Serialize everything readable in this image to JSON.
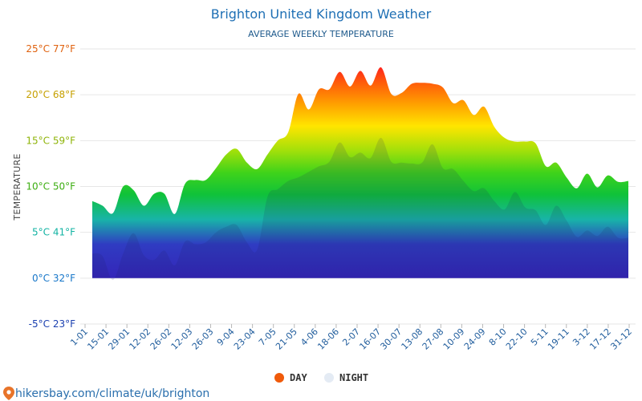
{
  "chart_data": {
    "type": "area",
    "title": "Brighton United Kingdom Weather",
    "subtitle": "AVERAGE WEEKLY TEMPERATURE",
    "ylabel": "TEMPERATURE",
    "ylim": [
      -5,
      25
    ],
    "y_ticks": [
      {
        "value": 25,
        "label": "25°C 77°F",
        "color": "#e0620f"
      },
      {
        "value": 20,
        "label": "20°C 68°F",
        "color": "#c6a000"
      },
      {
        "value": 15,
        "label": "15°C 59°F",
        "color": "#8fb40a"
      },
      {
        "value": 10,
        "label": "10°C 50°F",
        "color": "#3dae12"
      },
      {
        "value": 5,
        "label": "5°C 41°F",
        "color": "#12b3a3"
      },
      {
        "value": 0,
        "label": "0°C 32°F",
        "color": "#1877c9"
      },
      {
        "value": -5,
        "label": "-5°C 23°F",
        "color": "#1a3fb0"
      }
    ],
    "x_labels": [
      "1-01",
      "15-01",
      "29-01",
      "12-02",
      "26-02",
      "12-03",
      "26-03",
      "9-04",
      "23-04",
      "7-05",
      "21-05",
      "4-06",
      "18-06",
      "2-07",
      "16-07",
      "30-07",
      "13-08",
      "27-08",
      "10-09",
      "24-09",
      "8-10",
      "22-10",
      "5-11",
      "19-11",
      "3-12",
      "17-12",
      "31-12"
    ],
    "series": [
      {
        "name": "DAY",
        "color": "#f05a0a",
        "values": [
          8.4,
          7.9,
          7.1,
          10.0,
          9.6,
          7.9,
          9.2,
          9.2,
          7.0,
          10.3,
          10.7,
          10.7,
          12.0,
          13.5,
          14.1,
          12.6,
          11.9,
          13.5,
          15.0,
          15.9,
          20.1,
          18.4,
          20.6,
          20.6,
          22.5,
          20.9,
          22.6,
          21.0,
          23.0,
          20.1,
          20.2,
          21.2,
          21.3,
          21.2,
          20.8,
          19.1,
          19.4,
          17.8,
          18.7,
          16.5,
          15.3,
          14.9,
          14.9,
          14.7,
          12.2,
          12.6,
          11.0,
          9.8,
          11.4,
          9.9,
          11.2,
          10.5,
          10.6
        ]
      },
      {
        "name": "NIGHT",
        "color": "#e4ebf4",
        "values": [
          2.7,
          2.4,
          -0.2,
          2.7,
          4.9,
          2.5,
          2.0,
          3.0,
          1.4,
          4.0,
          3.7,
          3.9,
          5.0,
          5.6,
          5.8,
          3.9,
          3.1,
          8.9,
          9.7,
          10.6,
          11.0,
          11.6,
          12.2,
          12.7,
          14.8,
          13.2,
          13.7,
          13.1,
          15.3,
          12.7,
          12.6,
          12.5,
          12.6,
          14.6,
          12.0,
          11.9,
          10.6,
          9.5,
          9.8,
          8.4,
          7.5,
          9.4,
          7.7,
          7.4,
          5.8,
          7.9,
          6.3,
          4.5,
          5.2,
          4.6,
          5.6,
          4.4,
          4.4
        ]
      }
    ],
    "legend": {
      "position": "bottom-center"
    },
    "grid": true
  },
  "source_text": "hikersbay.com/climate/uk/brighton"
}
